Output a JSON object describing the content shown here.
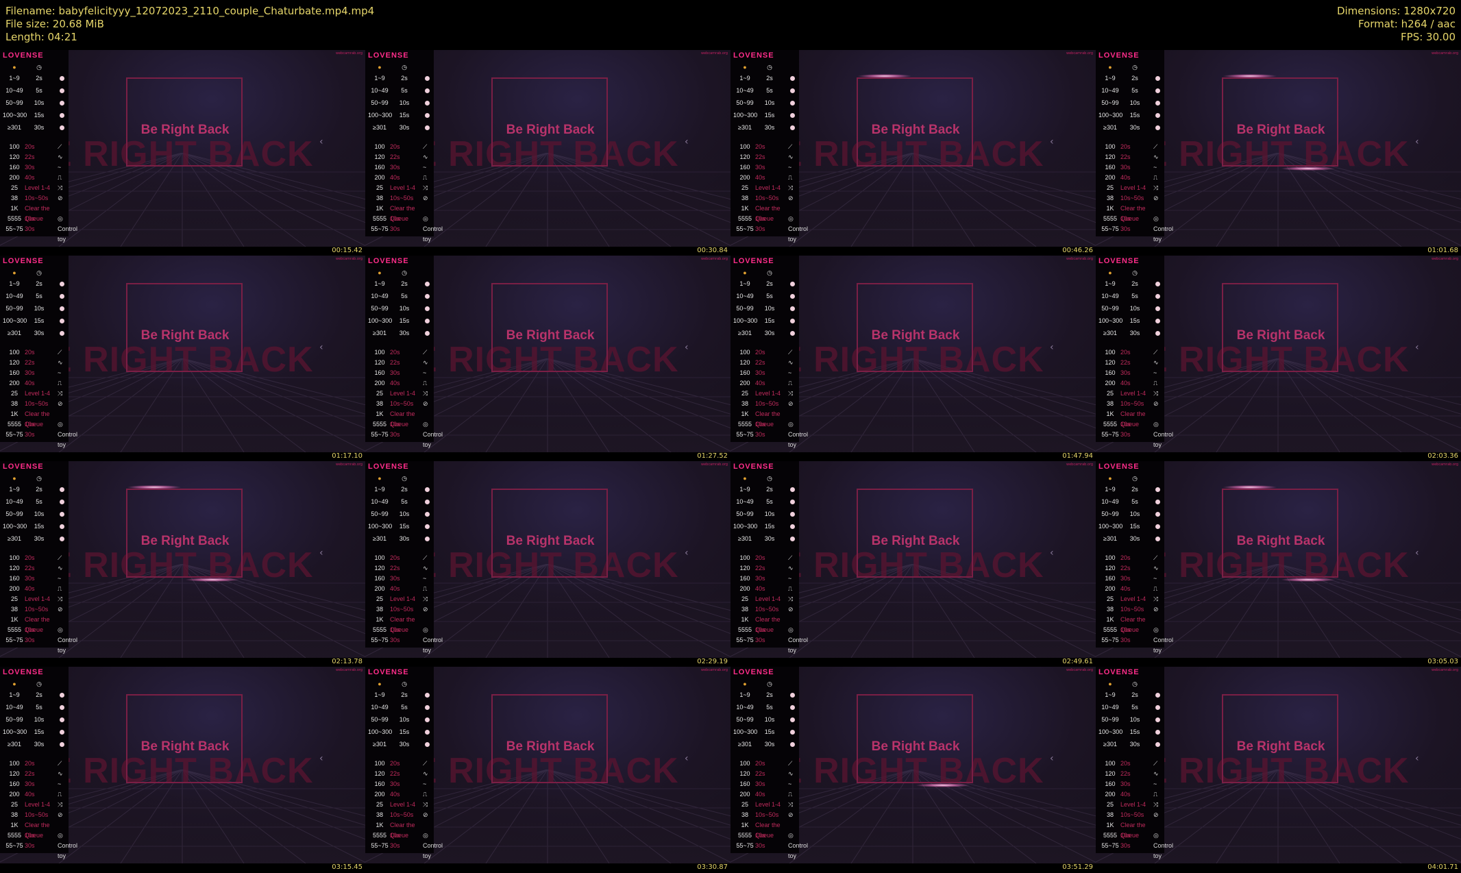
{
  "header": {
    "filename": "Filename: babyfelicityyy_12072023_2110_couple_Chaturbate.mp4.mp4",
    "filesize": "File size: 20.68 MiB",
    "length": "Length: 04:21",
    "dimensions": "Dimensions: 1280x720",
    "format": "Format: h264 / aac",
    "fps": "FPS: 30.00"
  },
  "overlay": {
    "logo": "LOVENSE",
    "watermark": "webcamrab.org",
    "headline": "Be Right Back",
    "background_text": "E RIGHT BACK",
    "arrow": "‹",
    "tip_icons": {
      "left": "coin-icon",
      "right": "timer-icon"
    },
    "levels": [
      {
        "range": "1~9",
        "time": "2s"
      },
      {
        "range": "10~49",
        "time": "5s"
      },
      {
        "range": "50~99",
        "time": "10s"
      },
      {
        "range": "100~300",
        "time": "15s"
      },
      {
        "range": "≥301",
        "time": "30s"
      }
    ],
    "specials": [
      {
        "amount": "100",
        "time": "20s",
        "wave": "⟋"
      },
      {
        "amount": "120",
        "time": "22s",
        "wave": "∿"
      },
      {
        "amount": "160",
        "time": "30s",
        "wave": "~"
      },
      {
        "amount": "200",
        "time": "40s",
        "wave": "⎍"
      },
      {
        "amount": "25",
        "time": "Level 1-4",
        "wave": "⤨"
      },
      {
        "amount": "38",
        "time": "10s~50s",
        "wave": "⊘"
      },
      {
        "amount": "1K",
        "time": "Clear the Queue",
        "wave": ""
      },
      {
        "amount": "5555",
        "time": "10s",
        "wave": "◎"
      },
      {
        "amount": "55~75",
        "time": "30s",
        "wave": "Control toy"
      }
    ]
  },
  "thumbnails": [
    {
      "timestamp": "00:15.42"
    },
    {
      "timestamp": "00:30.84"
    },
    {
      "timestamp": "00:46.26"
    },
    {
      "timestamp": "01:01.68"
    },
    {
      "timestamp": "01:17.10"
    },
    {
      "timestamp": "01:27.52"
    },
    {
      "timestamp": "01:47.94"
    },
    {
      "timestamp": "02:03.36"
    },
    {
      "timestamp": "02:13.78"
    },
    {
      "timestamp": "02:29.19"
    },
    {
      "timestamp": "02:49.61"
    },
    {
      "timestamp": "03:05.03"
    },
    {
      "timestamp": "03:15.45"
    },
    {
      "timestamp": "03:30.87"
    },
    {
      "timestamp": "03:51.29"
    },
    {
      "timestamp": "04:01.71"
    }
  ],
  "colors": {
    "accent": "#ff2d8a",
    "timestamp": "#e6d66a",
    "headline": "#b8336a"
  }
}
